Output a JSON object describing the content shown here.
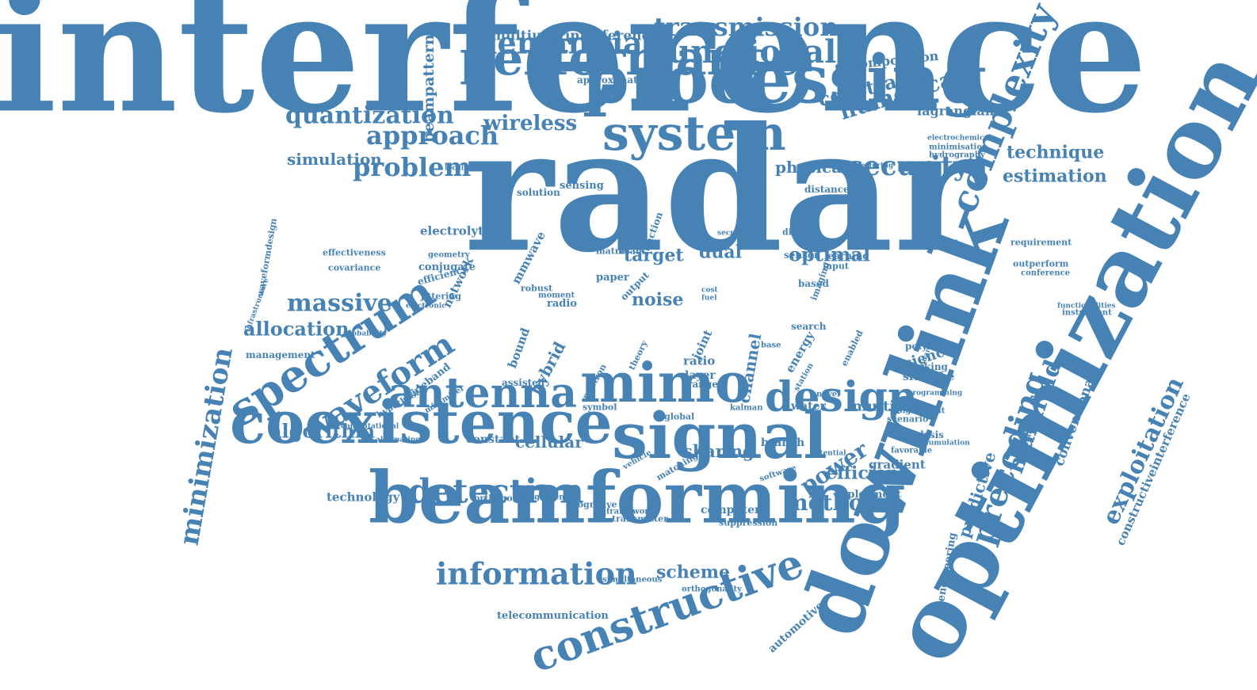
{
  "color": "#4682b4",
  "words": [
    "interference",
    "radar",
    "optimization",
    "downlink",
    "beamforming",
    "processing",
    "coexistence",
    "signal",
    "performance",
    "mimo",
    "spectrum",
    "system",
    "antenna",
    "complexity",
    "constructive",
    "waveform",
    "design",
    "detection",
    "minimization",
    "information",
    "functional",
    "precoding",
    "transmission",
    "riemannian",
    "security",
    "approach",
    "quantization",
    "problem",
    "numerical",
    "constraint",
    "wireless",
    "technique",
    "estimation",
    "simulation",
    "massive",
    "allocation",
    "algorithm",
    "method",
    "power",
    "manifold",
    "efficient",
    "scheme",
    "exploitation",
    "constructiveinterference",
    "multiuserinterference",
    "beampattern",
    "decomposition",
    "lagrangian",
    "physical",
    "cellular",
    "sharing",
    "predictive",
    "conventional",
    "optimal",
    "target",
    "dual",
    "noise",
    "hybrid",
    "multiple",
    "science",
    "channel",
    "energy",
    "electrolyte",
    "network",
    "mmwave",
    "telecommunication",
    "automotive",
    "engineering",
    "technology",
    "waveformdesign",
    "management",
    "wideband",
    "constant",
    "branch",
    "computer",
    "deployment",
    "gradient",
    "requirement",
    "outperform",
    "conference",
    "water",
    "sidelobe",
    "polymer",
    "tracking",
    "scenario",
    "analysis",
    "favorable",
    "alternating",
    "orthogonal",
    "framework",
    "transmitter",
    "suppression",
    "software",
    "potential",
    "simultaneous",
    "orthogonality",
    "cognitive",
    "alignment",
    "vehicle",
    "matching",
    "effectiveness",
    "covariance",
    "conjugate",
    "geometry",
    "efficiency",
    "jittering",
    "robust",
    "radio",
    "moment",
    "electronic",
    "probability",
    "hypothesi",
    "minimizer",
    "computational",
    "assisted",
    "bound",
    "ratio",
    "layer",
    "range",
    "joint",
    "station",
    "base",
    "kalman",
    "novel",
    "imaging",
    "input",
    "result",
    "sensor",
    "learning",
    "based",
    "distance",
    "interfering",
    "electrochemical",
    "minimisation",
    "hydrography",
    "solution",
    "sensing",
    "localization",
    "approximation",
    "paper",
    "matrix",
    "beam",
    "function",
    "digital",
    "secrecy",
    "output",
    "infrastructure",
    "instrument",
    "functionalities",
    "transmitting",
    "accumulation",
    "significant",
    "programming",
    "standard",
    "symbol",
    "global",
    "neutron",
    "theory",
    "cost",
    "fuel",
    "search",
    "enabled"
  ]
}
